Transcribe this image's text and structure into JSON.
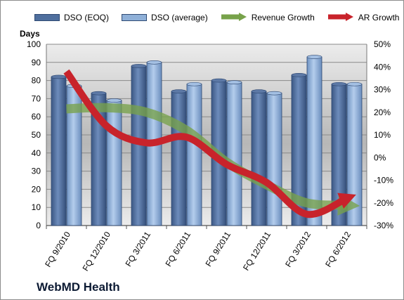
{
  "chart_data": {
    "type": "bar",
    "title": "WebMD Health",
    "y_left_label": "Days",
    "ylim_left": [
      0,
      100
    ],
    "ylim_right": [
      -30,
      50
    ],
    "left_ticks": [
      "0",
      "10",
      "20",
      "30",
      "40",
      "50",
      "60",
      "70",
      "80",
      "90",
      "100"
    ],
    "right_ticks": [
      "-30%",
      "-20%",
      "-10%",
      "0%",
      "10%",
      "20%",
      "30%",
      "40%",
      "50%"
    ],
    "categories": [
      "FQ 9/2010",
      "FQ 12/2010",
      "FQ 3/2011",
      "FQ 6/2011",
      "FQ 9/2011",
      "FQ 12/2011",
      "FQ 3/2012",
      "FQ 6/2012"
    ],
    "series": [
      {
        "name": "DSO (EOQ)",
        "type": "bar",
        "axis": "left",
        "color": "#4f6f9e",
        "values": [
          82,
          73,
          88,
          74,
          80,
          74,
          83,
          78
        ]
      },
      {
        "name": "DSO (average)",
        "type": "bar",
        "axis": "left",
        "color": "#8fb0d8",
        "values": [
          77,
          69,
          90,
          78,
          79,
          73,
          93,
          78
        ]
      },
      {
        "name": "Revenue Growth",
        "type": "line",
        "axis": "right",
        "color": "#77a24a",
        "values": [
          21.5,
          22,
          20,
          12,
          -2,
          -12,
          -20,
          -21
        ]
      },
      {
        "name": "AR Growth",
        "type": "line",
        "axis": "right",
        "color": "#c8232b",
        "values": [
          38,
          14,
          6.5,
          9,
          -3,
          -11,
          -25,
          -18
        ]
      }
    ],
    "legend_position": "top",
    "grid": true
  }
}
